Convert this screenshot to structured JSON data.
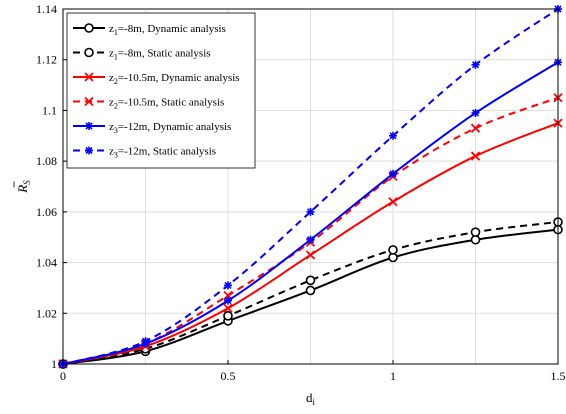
{
  "chart_data": {
    "type": "line",
    "xlabel_main": "d",
    "xlabel_sub": "i",
    "ylabel_main": "R",
    "ylabel_sub": "S",
    "xlim": [
      0,
      1.5
    ],
    "ylim": [
      1.0,
      1.14
    ],
    "x_ticks": [
      0,
      0.5,
      1,
      1.5
    ],
    "x_tick_labels": [
      "0",
      "0.5",
      "1",
      "1.5"
    ],
    "y_ticks": [
      1.0,
      1.02,
      1.04,
      1.06,
      1.08,
      1.1,
      1.12,
      1.14
    ],
    "y_tick_labels": [
      "1",
      "1.02",
      "1.04",
      "1.06",
      "1.08",
      "1.1",
      "1.12",
      "1.14"
    ],
    "x_minor_grid": [
      0.25,
      0.75,
      1.25
    ],
    "grid": true,
    "legend_position": "top-left",
    "x": [
      0,
      0.25,
      0.5,
      0.75,
      1.0,
      1.25,
      1.5
    ],
    "series": [
      {
        "name_main": "z",
        "name_sub": "1",
        "name_rest": "=-8m, Dynamic analysis",
        "color": "#000000",
        "dash": "solid",
        "marker": "circle",
        "values": [
          1.0,
          1.005,
          1.017,
          1.029,
          1.042,
          1.049,
          1.053
        ]
      },
      {
        "name_main": "z",
        "name_sub": "1",
        "name_rest": "=-8m, Static analysis",
        "color": "#000000",
        "dash": "dashed",
        "marker": "circle",
        "values": [
          1.0,
          1.006,
          1.019,
          1.033,
          1.045,
          1.052,
          1.056
        ]
      },
      {
        "name_main": "z",
        "name_sub": "2",
        "name_rest": "=-10.5m, Dynamic analysis",
        "color": "#ff0000",
        "dash": "solid",
        "marker": "x",
        "values": [
          1.0,
          1.007,
          1.022,
          1.043,
          1.064,
          1.082,
          1.095
        ]
      },
      {
        "name_main": "z",
        "name_sub": "2",
        "name_rest": "=-10.5m, Static analysis",
        "color": "#ff0000",
        "dash": "dashed",
        "marker": "x",
        "values": [
          1.0,
          1.008,
          1.027,
          1.048,
          1.074,
          1.093,
          1.105
        ]
      },
      {
        "name_main": "z",
        "name_sub": "3",
        "name_rest": "=-12m, Dynamic analysis",
        "color": "#0000ff",
        "dash": "solid",
        "marker": "star",
        "values": [
          1.0,
          1.008,
          1.025,
          1.049,
          1.075,
          1.099,
          1.119
        ]
      },
      {
        "name_main": "z",
        "name_sub": "3",
        "name_rest": "=-12m, Static analysis",
        "color": "#0000ff",
        "dash": "dashed",
        "marker": "star",
        "values": [
          1.0,
          1.009,
          1.031,
          1.06,
          1.09,
          1.118,
          1.14
        ]
      }
    ]
  }
}
